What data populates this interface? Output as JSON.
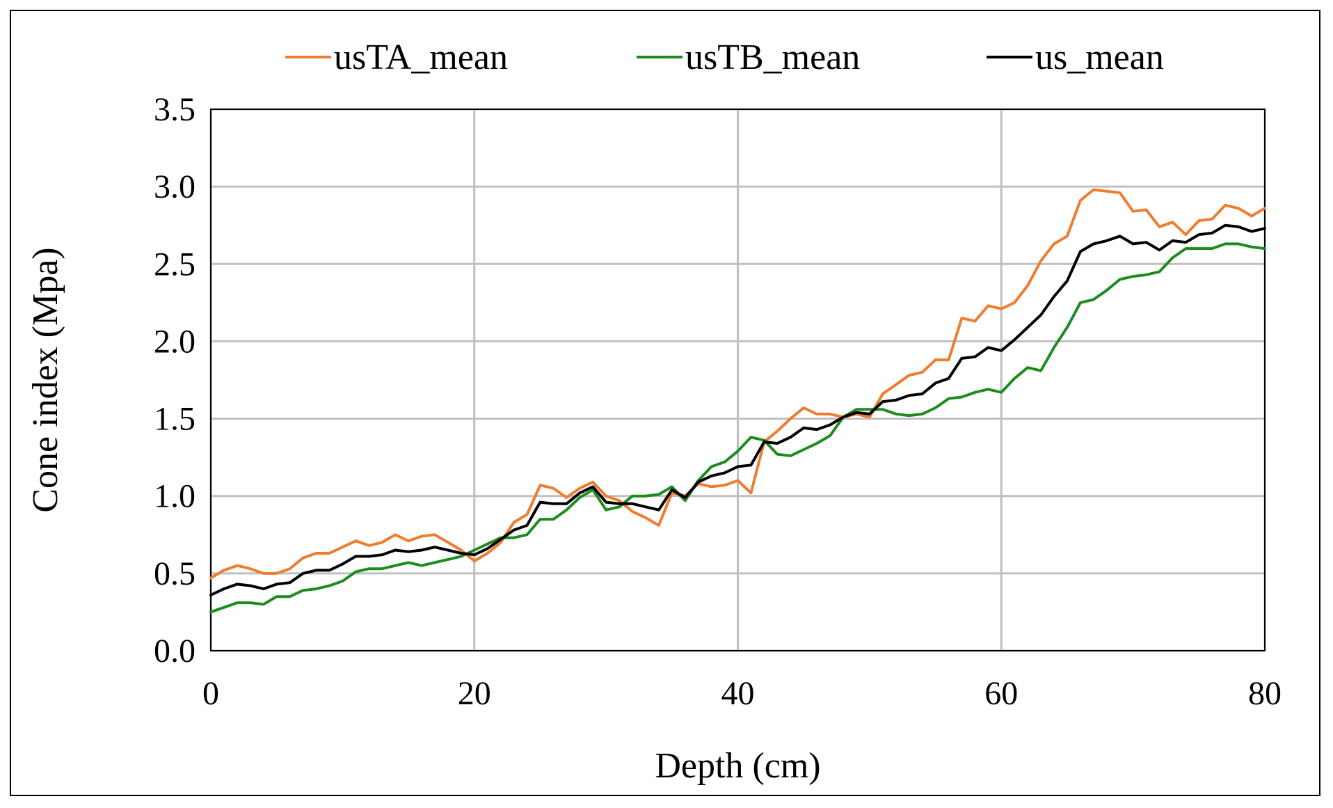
{
  "chart_data": {
    "type": "line",
    "xlabel": "Depth (cm)",
    "ylabel": "Cone index (Mpa)",
    "xlim": [
      0,
      80
    ],
    "ylim": [
      0,
      3.5
    ],
    "xticks": [
      "0",
      "20",
      "40",
      "60",
      "80"
    ],
    "yticks": [
      "0.0",
      "0.5",
      "1.0",
      "1.5",
      "2.0",
      "2.5",
      "3.0",
      "3.5"
    ],
    "grid": true,
    "legend_position": "top",
    "x": [
      0,
      1,
      2,
      3,
      4,
      5,
      6,
      7,
      8,
      9,
      10,
      11,
      12,
      13,
      14,
      15,
      16,
      17,
      18,
      19,
      20,
      21,
      22,
      23,
      24,
      25,
      26,
      27,
      28,
      29,
      30,
      31,
      32,
      33,
      34,
      35,
      36,
      37,
      38,
      39,
      40,
      41,
      42,
      43,
      44,
      45,
      46,
      47,
      48,
      49,
      50,
      51,
      52,
      53,
      54,
      55,
      56,
      57,
      58,
      59,
      60,
      61,
      62,
      63,
      64,
      65,
      66,
      67,
      68,
      69,
      70,
      71,
      72,
      73,
      74,
      75,
      76,
      77,
      78,
      79,
      80
    ],
    "series": [
      {
        "name": "usTA_mean",
        "color": "#ED7D31",
        "values": [
          0.47,
          0.52,
          0.55,
          0.53,
          0.5,
          0.5,
          0.53,
          0.6,
          0.63,
          0.63,
          0.67,
          0.71,
          0.68,
          0.7,
          0.75,
          0.71,
          0.74,
          0.75,
          0.7,
          0.65,
          0.58,
          0.63,
          0.7,
          0.83,
          0.88,
          1.07,
          1.05,
          0.99,
          1.05,
          1.09,
          1.0,
          0.97,
          0.9,
          0.86,
          0.81,
          1.02,
          1.0,
          1.08,
          1.06,
          1.07,
          1.1,
          1.02,
          1.35,
          1.42,
          1.5,
          1.57,
          1.53,
          1.53,
          1.51,
          1.53,
          1.51,
          1.66,
          1.72,
          1.78,
          1.8,
          1.88,
          1.88,
          2.15,
          2.13,
          2.23,
          2.21,
          2.25,
          2.36,
          2.52,
          2.63,
          2.68,
          2.91,
          2.98,
          2.97,
          2.96,
          2.84,
          2.85,
          2.74,
          2.77,
          2.69,
          2.78,
          2.79,
          2.88,
          2.86,
          2.81,
          2.86
        ]
      },
      {
        "name": "usTB_mean",
        "color": "#1F8B1F",
        "values": [
          0.25,
          0.28,
          0.31,
          0.31,
          0.3,
          0.35,
          0.35,
          0.39,
          0.4,
          0.42,
          0.45,
          0.51,
          0.53,
          0.53,
          0.55,
          0.57,
          0.55,
          0.57,
          0.59,
          0.61,
          0.65,
          0.69,
          0.73,
          0.73,
          0.75,
          0.85,
          0.85,
          0.91,
          0.99,
          1.04,
          0.91,
          0.93,
          1.0,
          1.0,
          1.01,
          1.06,
          0.97,
          1.1,
          1.19,
          1.22,
          1.29,
          1.38,
          1.36,
          1.27,
          1.26,
          1.3,
          1.34,
          1.39,
          1.51,
          1.56,
          1.56,
          1.56,
          1.53,
          1.52,
          1.53,
          1.57,
          1.63,
          1.64,
          1.67,
          1.69,
          1.67,
          1.76,
          1.83,
          1.81,
          1.96,
          2.09,
          2.25,
          2.27,
          2.33,
          2.4,
          2.42,
          2.43,
          2.45,
          2.54,
          2.6,
          2.6,
          2.6,
          2.63,
          2.63,
          2.61,
          2.6
        ]
      },
      {
        "name": "us_mean",
        "color": "#000000",
        "values": [
          0.36,
          0.4,
          0.43,
          0.42,
          0.4,
          0.43,
          0.44,
          0.5,
          0.52,
          0.52,
          0.56,
          0.61,
          0.61,
          0.62,
          0.65,
          0.64,
          0.65,
          0.67,
          0.65,
          0.63,
          0.62,
          0.66,
          0.72,
          0.78,
          0.81,
          0.96,
          0.95,
          0.95,
          1.02,
          1.06,
          0.96,
          0.95,
          0.95,
          0.93,
          0.91,
          1.04,
          0.99,
          1.09,
          1.13,
          1.15,
          1.19,
          1.2,
          1.35,
          1.34,
          1.38,
          1.44,
          1.43,
          1.46,
          1.51,
          1.54,
          1.53,
          1.61,
          1.62,
          1.65,
          1.66,
          1.73,
          1.76,
          1.89,
          1.9,
          1.96,
          1.94,
          2.01,
          2.09,
          2.17,
          2.29,
          2.39,
          2.58,
          2.63,
          2.65,
          2.68,
          2.63,
          2.64,
          2.59,
          2.65,
          2.64,
          2.69,
          2.7,
          2.75,
          2.74,
          2.71,
          2.73
        ]
      }
    ]
  }
}
